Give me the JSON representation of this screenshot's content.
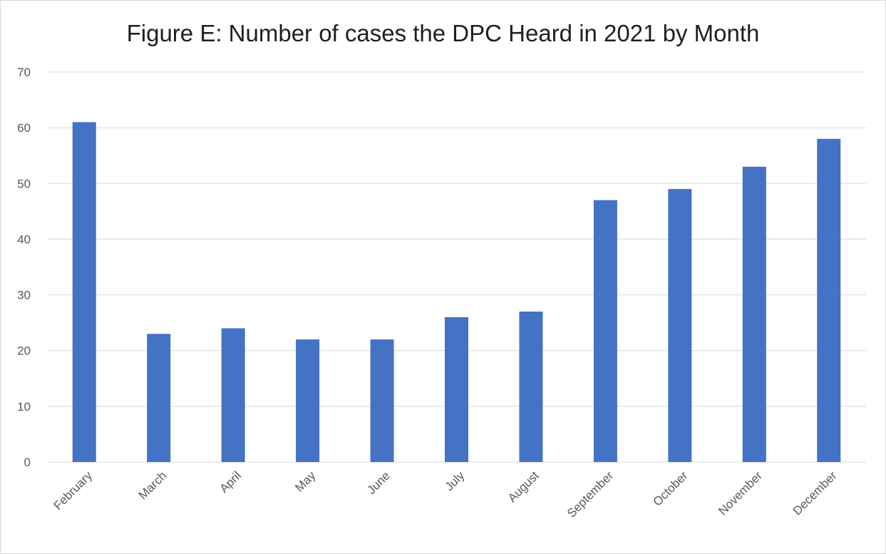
{
  "chart_data": {
    "type": "bar",
    "title": "Figure E:  Number of cases the DPC Heard in 2021 by Month",
    "xlabel": "",
    "ylabel": "",
    "categories": [
      "February",
      "March",
      "April",
      "May",
      "June",
      "July",
      "August",
      "September",
      "October",
      "November",
      "December"
    ],
    "values": [
      61,
      23,
      24,
      22,
      22,
      26,
      27,
      47,
      49,
      53,
      58
    ],
    "ylim": [
      0,
      70
    ],
    "yticks": [
      0,
      10,
      20,
      30,
      40,
      50,
      60,
      70
    ],
    "grid": true,
    "legend": "none",
    "bar_color": "#4472c4",
    "gridline_color": "#d9d9d9"
  }
}
